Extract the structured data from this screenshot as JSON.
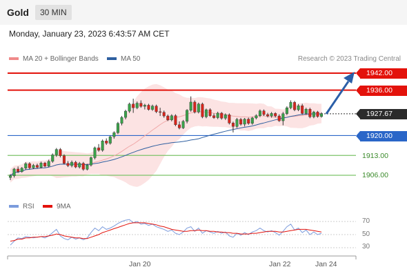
{
  "header": {
    "instrument": "Gold",
    "timeframe": "30 MIN"
  },
  "datetime": "Monday, January 23, 2023 6:43:57 AM CET",
  "legend": {
    "ma20_bb": "MA 20 + Bollinger Bands",
    "ma50": "MA 50",
    "credit": "Research © 2023 Trading Central"
  },
  "colors": {
    "resistance": "#e3120b",
    "pivot": "#2a66c8",
    "support": "#7cc36a",
    "bollinger_fill": "#fbdada",
    "ma20": "#f0a9a9",
    "ma50": "#2e5fa0",
    "candle_up": "#3aa24a",
    "candle_down": "#d9251c",
    "arrow": "#2b5fa8",
    "rsi": "#7b9bdc",
    "rsi_ma": "#e3120b"
  },
  "levels": {
    "r2": "1942.00",
    "r1": "1936.00",
    "last": "1927.67",
    "pivot": "1920.00",
    "s1": "1913.00",
    "s2": "1906.00"
  },
  "rsi_panel": {
    "rsi_label": "RSI",
    "ma_label": "9MA",
    "ticks": [
      "70",
      "50",
      "30"
    ]
  },
  "x_axis": {
    "labels": [
      "Jan 20",
      "Jan 22",
      "Jan 24"
    ]
  },
  "chart_data": {
    "type": "candlestick",
    "ylim": [
      1903.5,
      1943.5
    ],
    "candles": [
      [
        1905.2,
        1906.4,
        1904.3,
        1905.8
      ],
      [
        1905.8,
        1908.6,
        1905.2,
        1908.2
      ],
      [
        1908.2,
        1909.1,
        1906.8,
        1907.3
      ],
      [
        1907.3,
        1908.9,
        1906.9,
        1908.5
      ],
      [
        1908.5,
        1910.6,
        1908.0,
        1910.1
      ],
      [
        1910.1,
        1910.6,
        1908.1,
        1908.6
      ],
      [
        1908.6,
        1910.0,
        1908.2,
        1909.5
      ],
      [
        1909.5,
        1910.1,
        1908.4,
        1908.8
      ],
      [
        1908.8,
        1910.8,
        1908.4,
        1910.3
      ],
      [
        1910.3,
        1910.7,
        1908.8,
        1909.2
      ],
      [
        1909.2,
        1911.5,
        1908.9,
        1910.9
      ],
      [
        1910.9,
        1913.7,
        1910.4,
        1913.2
      ],
      [
        1913.2,
        1915.6,
        1912.5,
        1915.1
      ],
      [
        1915.1,
        1915.6,
        1912.3,
        1912.9
      ],
      [
        1912.9,
        1913.4,
        1909.8,
        1910.2
      ],
      [
        1910.2,
        1911.0,
        1908.9,
        1909.4
      ],
      [
        1909.4,
        1911.2,
        1908.8,
        1910.6
      ],
      [
        1910.6,
        1911.1,
        1908.5,
        1908.9
      ],
      [
        1908.9,
        1910.7,
        1908.4,
        1910.2
      ],
      [
        1910.2,
        1910.7,
        1907.6,
        1908.1
      ],
      [
        1908.1,
        1910.0,
        1907.7,
        1909.6
      ],
      [
        1909.6,
        1912.6,
        1909.1,
        1912.2
      ],
      [
        1912.2,
        1916.1,
        1911.6,
        1915.7
      ],
      [
        1915.7,
        1917.0,
        1914.3,
        1914.8
      ],
      [
        1914.8,
        1918.6,
        1914.3,
        1918.1
      ],
      [
        1918.1,
        1919.0,
        1916.7,
        1917.3
      ],
      [
        1917.3,
        1920.0,
        1916.8,
        1919.6
      ],
      [
        1919.6,
        1921.5,
        1918.9,
        1921.0
      ],
      [
        1921.0,
        1924.8,
        1920.5,
        1924.3
      ],
      [
        1924.3,
        1926.9,
        1923.6,
        1926.4
      ],
      [
        1926.4,
        1929.1,
        1925.7,
        1928.6
      ],
      [
        1928.6,
        1931.6,
        1928.0,
        1931.1
      ],
      [
        1931.1,
        1933.0,
        1928.0,
        1929.8
      ],
      [
        1929.8,
        1932.0,
        1929.3,
        1931.4
      ],
      [
        1931.4,
        1932.4,
        1929.8,
        1930.3
      ],
      [
        1930.3,
        1931.2,
        1929.2,
        1930.7
      ],
      [
        1930.7,
        1931.2,
        1928.8,
        1929.2
      ],
      [
        1929.2,
        1930.9,
        1928.7,
        1930.4
      ],
      [
        1930.4,
        1930.9,
        1927.9,
        1928.4
      ],
      [
        1928.4,
        1929.8,
        1926.9,
        1928.2
      ],
      [
        1928.2,
        1928.8,
        1926.3,
        1926.9
      ],
      [
        1926.9,
        1927.4,
        1925.1,
        1925.5
      ],
      [
        1925.5,
        1927.5,
        1925.0,
        1927.0
      ],
      [
        1927.0,
        1927.5,
        1923.3,
        1923.8
      ],
      [
        1923.8,
        1925.0,
        1922.2,
        1922.7
      ],
      [
        1922.7,
        1925.5,
        1922.3,
        1925.0
      ],
      [
        1925.0,
        1929.3,
        1924.3,
        1928.9
      ],
      [
        1928.9,
        1933.8,
        1928.4,
        1931.8
      ],
      [
        1931.8,
        1932.4,
        1927.8,
        1928.3
      ],
      [
        1928.3,
        1931.6,
        1927.8,
        1931.1
      ],
      [
        1931.1,
        1931.6,
        1926.1,
        1926.6
      ],
      [
        1926.6,
        1929.5,
        1926.1,
        1929.1
      ],
      [
        1929.1,
        1929.6,
        1926.6,
        1927.0
      ],
      [
        1927.0,
        1927.8,
        1925.9,
        1926.3
      ],
      [
        1926.3,
        1928.4,
        1925.8,
        1927.9
      ],
      [
        1927.9,
        1928.3,
        1925.6,
        1926.1
      ],
      [
        1926.1,
        1927.8,
        1925.5,
        1927.3
      ],
      [
        1927.3,
        1927.8,
        1923.9,
        1924.4
      ],
      [
        1924.4,
        1924.9,
        1921.1,
        1923.2
      ],
      [
        1923.2,
        1926.2,
        1922.7,
        1925.7
      ],
      [
        1925.7,
        1926.2,
        1923.5,
        1924.0
      ],
      [
        1924.0,
        1926.2,
        1923.2,
        1925.8
      ],
      [
        1925.8,
        1926.3,
        1923.8,
        1924.3
      ],
      [
        1924.3,
        1926.6,
        1923.8,
        1926.2
      ],
      [
        1926.2,
        1927.5,
        1925.7,
        1927.0
      ],
      [
        1927.0,
        1929.2,
        1926.5,
        1928.7
      ],
      [
        1928.7,
        1929.2,
        1926.9,
        1927.4
      ],
      [
        1927.4,
        1928.0,
        1926.4,
        1926.9
      ],
      [
        1926.9,
        1928.3,
        1926.3,
        1927.8
      ],
      [
        1927.8,
        1928.2,
        1926.4,
        1926.9
      ],
      [
        1926.9,
        1927.5,
        1924.8,
        1925.2
      ],
      [
        1925.2,
        1928.3,
        1923.6,
        1927.7
      ],
      [
        1927.7,
        1930.3,
        1927.2,
        1929.8
      ],
      [
        1929.8,
        1932.4,
        1929.3,
        1931.7
      ],
      [
        1931.7,
        1932.2,
        1928.6,
        1929.1
      ],
      [
        1929.1,
        1931.1,
        1928.6,
        1930.5
      ],
      [
        1930.5,
        1931.2,
        1927.3,
        1927.8
      ],
      [
        1927.8,
        1929.8,
        1927.3,
        1929.3
      ],
      [
        1929.3,
        1929.8,
        1926.1,
        1926.6
      ],
      [
        1926.6,
        1928.7,
        1926.1,
        1928.3
      ],
      [
        1928.3,
        1928.7,
        1926.3,
        1926.7
      ],
      [
        1926.7,
        1928.2,
        1926.3,
        1927.7
      ]
    ],
    "rsi": [
      34,
      40,
      45,
      44,
      47,
      46,
      45,
      46,
      47,
      45,
      48,
      53,
      58,
      48,
      44,
      42,
      46,
      43,
      45,
      42,
      45,
      53,
      60,
      56,
      62,
      58,
      60,
      63,
      67,
      70,
      72,
      73,
      68,
      70,
      66,
      67,
      64,
      66,
      62,
      60,
      58,
      55,
      57,
      52,
      50,
      54,
      60,
      62,
      55,
      60,
      52,
      56,
      54,
      52,
      55,
      52,
      54,
      48,
      46,
      52,
      49,
      53,
      50,
      54,
      56,
      60,
      56,
      54,
      56,
      53,
      49,
      55,
      62,
      66,
      57,
      60,
      53,
      57,
      50,
      54,
      50,
      52
    ],
    "rsi_ma": [
      40,
      41,
      43,
      43,
      45,
      45,
      46,
      46,
      47,
      47,
      48,
      49,
      51,
      50,
      48,
      47,
      46,
      45,
      45,
      44,
      44,
      46,
      48,
      50,
      53,
      55,
      57,
      59,
      61,
      63,
      65,
      67,
      68,
      68,
      68,
      68,
      67,
      66,
      65,
      63,
      62,
      60,
      58,
      57,
      56,
      55,
      55,
      56,
      56,
      57,
      56,
      56,
      55,
      55,
      54,
      54,
      53,
      53,
      52,
      52,
      51,
      51,
      51,
      52,
      52,
      53,
      54,
      55,
      55,
      55,
      54,
      54,
      55,
      56,
      57,
      58,
      58,
      58,
      57,
      56,
      55,
      54
    ]
  }
}
